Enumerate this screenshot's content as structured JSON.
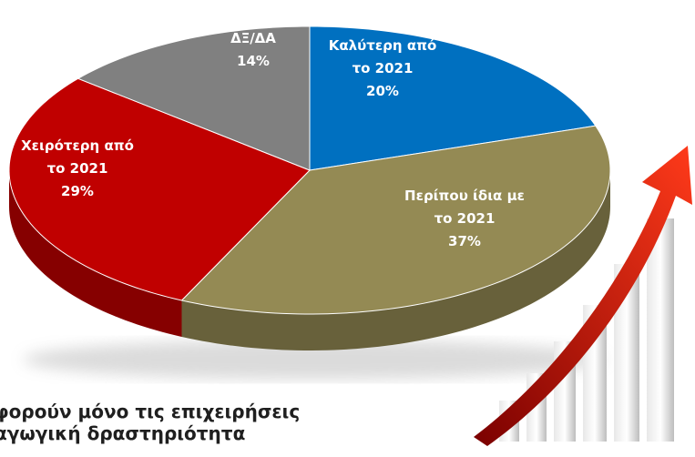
{
  "chart_data": {
    "type": "pie",
    "categories": [
      "Καλύτερη από\nτο 2021",
      "Περίπου ίδια με\nτο 2021",
      "Χειρότερη από\nτο 2021",
      "ΔΞ/ΔΑ"
    ],
    "values": [
      20,
      37,
      29,
      14
    ],
    "value_labels": [
      "20%",
      "37%",
      "29%",
      "14%"
    ],
    "colors": [
      "#0070c0",
      "#948a54",
      "#c00000",
      "#808080"
    ],
    "footnote": [
      "φορούν μόνο τις επιχειρήσεις",
      "αγωγική δραστηριότητα"
    ]
  }
}
